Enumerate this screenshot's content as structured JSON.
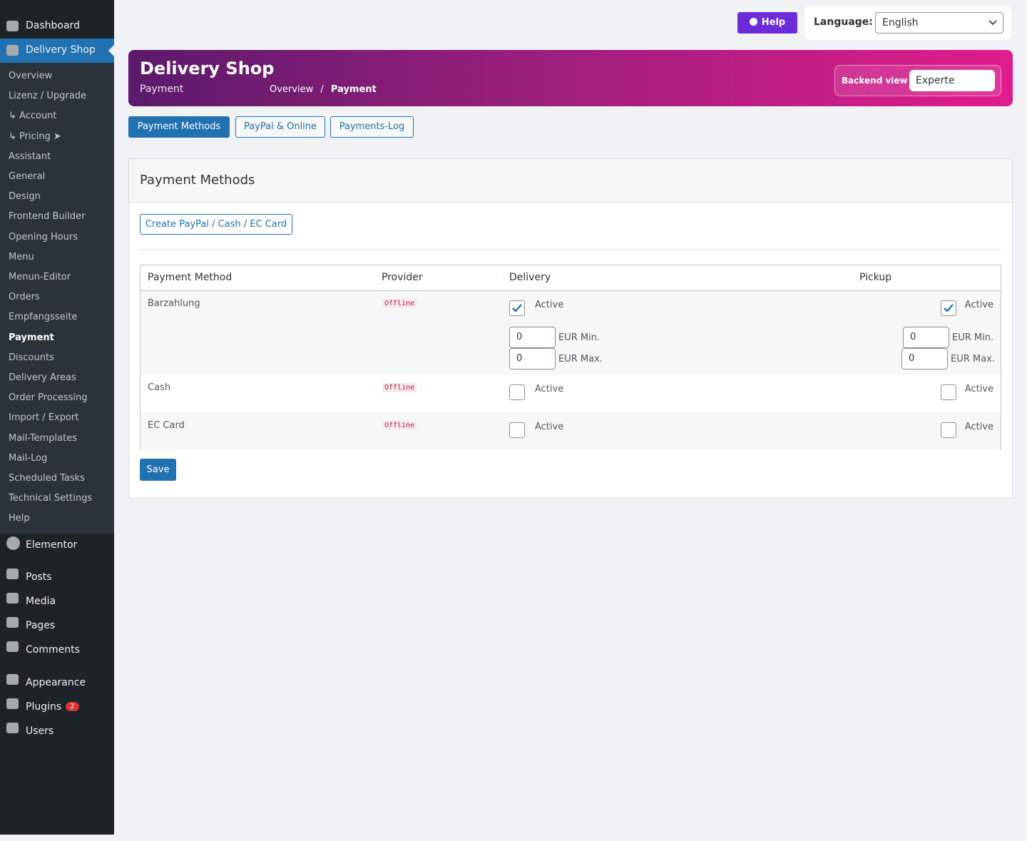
{
  "sidebar": {
    "top": [
      {
        "label": "Dashboard"
      },
      {
        "label": "Delivery Shop"
      }
    ],
    "submenu": [
      {
        "label": "Overview"
      },
      {
        "label": "Lizenz / Upgrade"
      },
      {
        "label": "↳ Account"
      },
      {
        "label": "↳ Pricing ➤"
      },
      {
        "label": "Assistant"
      },
      {
        "label": "General"
      },
      {
        "label": "Design"
      },
      {
        "label": "Frontend Builder"
      },
      {
        "label": "Opening Hours"
      },
      {
        "label": "Menu"
      },
      {
        "label": "Menun-Editor"
      },
      {
        "label": "Orders"
      },
      {
        "label": "Empfangsseite"
      },
      {
        "label": "Payment",
        "current": true
      },
      {
        "label": "Discounts"
      },
      {
        "label": "Delivery Areas"
      },
      {
        "label": "Order Processing"
      },
      {
        "label": "Import / Export"
      },
      {
        "label": "Mail-Templates"
      },
      {
        "label": "Mail-Log"
      },
      {
        "label": "Scheduled Tasks"
      },
      {
        "label": "Technical Settings"
      },
      {
        "label": "Help"
      }
    ],
    "bottom": [
      {
        "label": "Elementor"
      },
      {
        "label": "Posts"
      },
      {
        "label": "Media"
      },
      {
        "label": "Pages"
      },
      {
        "label": "Comments"
      },
      {
        "label": "Appearance"
      },
      {
        "label": "Plugins",
        "badge": 2
      },
      {
        "label": "Users"
      }
    ]
  },
  "topbar": {
    "help": "Help",
    "language_label": "Language:",
    "language": "English"
  },
  "header": {
    "title": "Delivery Shop",
    "subtitle": "Payment",
    "breadcrumb": [
      "Overview",
      "Payment"
    ],
    "breadcrumb_separator": "/",
    "backend_view_label": "Backend view",
    "backend_view": "Experte"
  },
  "tabs": [
    {
      "label": "Payment Methods",
      "active": true
    },
    {
      "label": "PayPal & Online"
    },
    {
      "label": "Payments-Log"
    }
  ],
  "card": {
    "title": "Payment Methods",
    "create_button": "Create PayPal / Cash / EC Card",
    "save": "Save",
    "table": {
      "headers": [
        "Payment Method",
        "Provider",
        "Delivery",
        "Pickup"
      ],
      "active_label": "Active",
      "min_label": "EUR Min.",
      "max_label": "EUR Max.",
      "rows": [
        {
          "name": "Barzahlung",
          "provider": "Offline",
          "delivery_active": true,
          "pickup_active": true,
          "delivery_min": 0,
          "delivery_max": 0,
          "pickup_min": 0,
          "pickup_max": 0
        },
        {
          "name": "Cash",
          "provider": "Offline",
          "delivery_active": false,
          "pickup_active": false
        },
        {
          "name": "EC Card",
          "provider": "Offline",
          "delivery_active": false,
          "pickup_active": false
        }
      ]
    }
  }
}
